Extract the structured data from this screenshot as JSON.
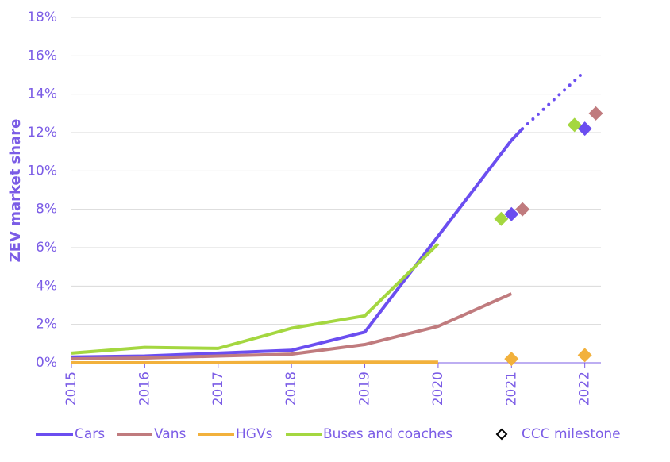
{
  "chart_data": {
    "type": "line",
    "y_label": "ZEV market share",
    "xlim": [
      2015,
      2022.22
    ],
    "xticks": [
      2015,
      2016,
      2017,
      2018,
      2019,
      2020,
      2021,
      2022
    ],
    "ylim": [
      0,
      18
    ],
    "yticks": [
      {
        "value": 0,
        "label": "0%"
      },
      {
        "value": 2,
        "label": "2%"
      },
      {
        "value": 4,
        "label": "4%"
      },
      {
        "value": 6,
        "label": "6%"
      },
      {
        "value": 8,
        "label": "8%"
      },
      {
        "value": 10,
        "label": "10%"
      },
      {
        "value": 12,
        "label": "12%"
      },
      {
        "value": 14,
        "label": "14%"
      },
      {
        "value": 16,
        "label": "16%"
      },
      {
        "value": 18,
        "label": "18%"
      }
    ],
    "grid": true,
    "milestone_legend": "CCC milestone",
    "series": [
      {
        "name": "Cars",
        "color": "#6b4ef0",
        "x": [
          2015,
          2016,
          2017,
          2018,
          2019,
          2020,
          2021,
          2021.15
        ],
        "values": [
          0.3,
          0.35,
          0.5,
          0.65,
          1.6,
          6.6,
          11.6,
          12.2
        ],
        "projection": {
          "x": [
            2021.15,
            2022
          ],
          "values": [
            12.2,
            15.2
          ]
        },
        "milestone_x": [
          2021,
          2022
        ],
        "milestones": [
          7.75,
          12.2
        ]
      },
      {
        "name": "Vans",
        "color": "#c07b7e",
        "x": [
          2015,
          2016,
          2017,
          2018,
          2019,
          2020,
          2021
        ],
        "values": [
          0.2,
          0.25,
          0.35,
          0.45,
          0.95,
          1.9,
          3.6
        ],
        "milestone_x": [
          2021.15,
          2022.15
        ],
        "milestones": [
          8.0,
          13.0
        ]
      },
      {
        "name": "HGVs",
        "color": "#f2b13c",
        "x": [
          2015,
          2016,
          2017,
          2018,
          2019,
          2020
        ],
        "values": [
          0,
          0,
          0,
          0.02,
          0.03,
          0.03
        ],
        "milestone_x": [
          2021,
          2022
        ],
        "milestones": [
          0.2,
          0.4
        ]
      },
      {
        "name": "Buses and coaches",
        "color": "#a4d740",
        "x": [
          2015,
          2016,
          2017,
          2018,
          2019,
          2020
        ],
        "values": [
          0.5,
          0.8,
          0.75,
          1.8,
          2.45,
          6.2
        ],
        "milestone_x": [
          2020.86,
          2021.86
        ],
        "milestones": [
          7.5,
          12.4
        ]
      }
    ]
  }
}
